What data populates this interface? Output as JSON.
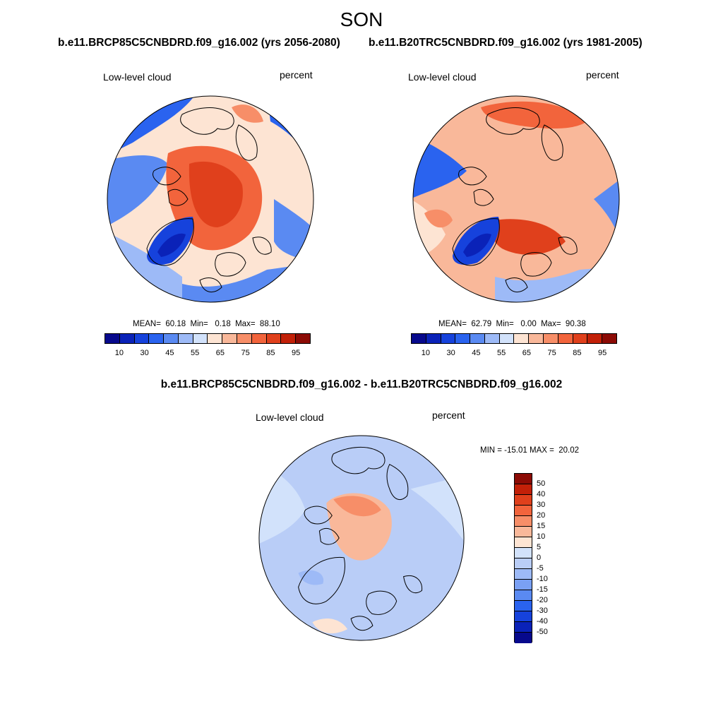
{
  "figure": {
    "season": "SON",
    "diff_title": "b.e11.BRCP85C5CNBDRD.f09_g16.002 - b.e11.B20TRC5CNBDRD.f09_g16.002"
  },
  "panels": [
    {
      "title": "b.e11.BRCP85C5CNBDRD.f09_g16.002 (yrs 2056-2080)",
      "variable": "Low-level cloud",
      "units": "percent",
      "stats": "MEAN=  60.18  Min=   0.18  Max=  88.10",
      "projection": "north polar stereographic",
      "colorbar_ticks": [
        "10",
        "30",
        "45",
        "55",
        "65",
        "75",
        "85",
        "95"
      ]
    },
    {
      "title": "b.e11.B20TRC5CNBDRD.f09_g16.002 (yrs 1981-2005)",
      "variable": "Low-level cloud",
      "units": "percent",
      "stats": "MEAN=  62.79  Min=   0.00  Max=  90.38",
      "projection": "north polar stereographic",
      "colorbar_ticks": [
        "10",
        "30",
        "45",
        "55",
        "65",
        "75",
        "85",
        "95"
      ]
    },
    {
      "variable": "Low-level cloud",
      "units": "percent",
      "stats": "MIN = -15.01 MAX =  20.02",
      "projection": "north polar stereographic",
      "colorbar_ticks": [
        "50",
        "40",
        "30",
        "20",
        "15",
        "10",
        "5",
        "0",
        "-5",
        "-10",
        "-15",
        "-20",
        "-30",
        "-40",
        "-50"
      ]
    }
  ],
  "colors": {
    "abs_scale": [
      "#07098c",
      "#0a22b8",
      "#1642dc",
      "#2a63ef",
      "#5a8af2",
      "#9dbaf7",
      "#d2e2fb",
      "#fde4d3",
      "#f9b89a",
      "#f78e68",
      "#f2643c",
      "#e0401c",
      "#c22008",
      "#8c0b05"
    ],
    "diff_scale": [
      "#8c0b05",
      "#c22008",
      "#e0401c",
      "#f2643c",
      "#f78e68",
      "#f9b89a",
      "#fde4d3",
      "#d2e2fb",
      "#b9cdf7",
      "#9dbaf7",
      "#7aa0f4",
      "#5a8af2",
      "#2a63ef",
      "#1642dc",
      "#0a22b8",
      "#07098c"
    ],
    "coastline": "#000000"
  }
}
